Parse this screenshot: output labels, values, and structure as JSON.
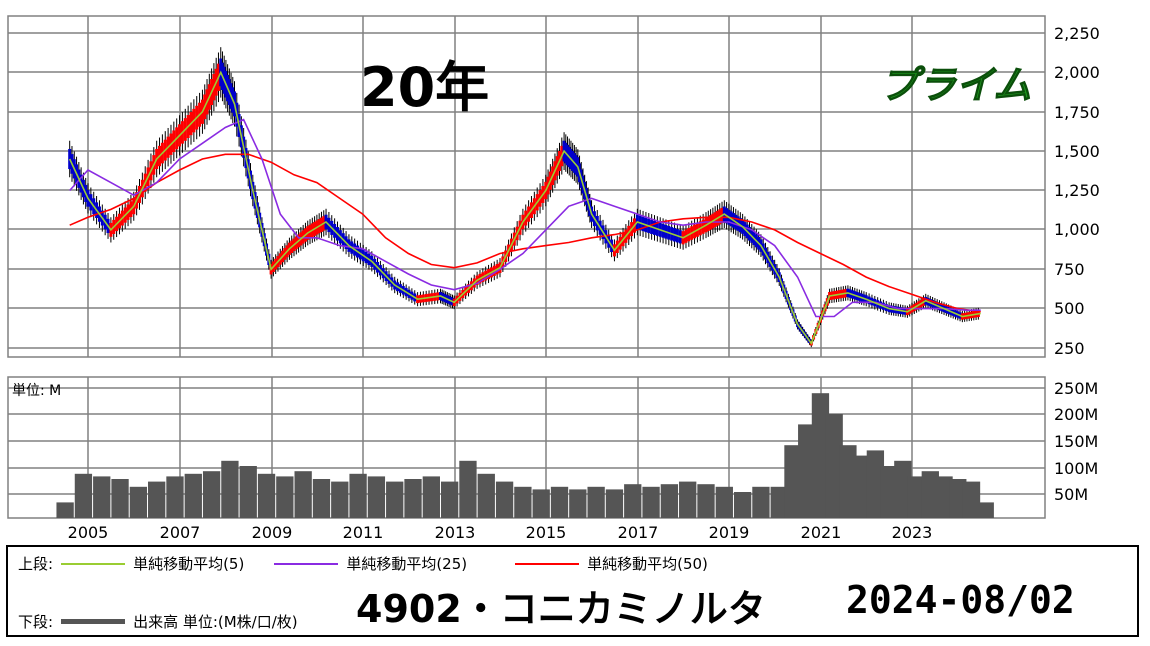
{
  "header": {
    "period_label": "20年",
    "market_label": "プライム"
  },
  "volume_panel": {
    "unit_label": "単位: M"
  },
  "legend": {
    "upper_label": "上段:",
    "lower_label": "下段:",
    "ma5_label": "単純移動平均(5)",
    "ma25_label": "単純移動平均(25)",
    "ma50_label": "単純移動平均(50)",
    "volume_label": "出来高 単位:(M株/口/枚)"
  },
  "footer": {
    "stock_title": "4902・コニカミノルタ",
    "date": "2024-08/02"
  },
  "colors": {
    "up_candle": "#ff0000",
    "down_candle": "#0000cc",
    "ma5": "#9acd32",
    "ma25": "#8a2be2",
    "ma50": "#ff0000",
    "volume": "#555555",
    "grid": "#808080"
  },
  "chart_data": [
    {
      "type": "line",
      "subtype": "candlestick-with-moving-averages",
      "x_ticks": [
        "2005",
        "2007",
        "2009",
        "2011",
        "2013",
        "2015",
        "2017",
        "2019",
        "2021",
        "2023"
      ],
      "y_ticks": [
        "2,250",
        "2,000",
        "1,750",
        "1,500",
        "1,250",
        "1,000",
        "750",
        "500",
        "250"
      ],
      "ylim": [
        250,
        2250
      ],
      "xlim": [
        2004.3,
        2024.8
      ],
      "series": [
        {
          "name": "単純移動平均(5)",
          "x": [
            2004.6,
            2005.0,
            2005.5,
            2006.0,
            2006.5,
            2007.0,
            2007.5,
            2007.9,
            2008.2,
            2008.6,
            2009.0,
            2009.4,
            2009.8,
            2010.2,
            2010.7,
            2011.2,
            2011.7,
            2012.2,
            2012.7,
            2013.0,
            2013.5,
            2014.0,
            2014.5,
            2015.0,
            2015.4,
            2015.7,
            2016.0,
            2016.5,
            2017.0,
            2017.5,
            2018.0,
            2018.5,
            2018.9,
            2019.3,
            2019.7,
            2020.1,
            2020.5,
            2020.8,
            2021.2,
            2021.6,
            2022.0,
            2022.5,
            2022.9,
            2023.3,
            2023.7,
            2024.1,
            2024.5
          ],
          "values": [
            1450,
            1200,
            1000,
            1150,
            1450,
            1600,
            1750,
            2000,
            1800,
            1250,
            750,
            880,
            980,
            1050,
            900,
            800,
            650,
            560,
            580,
            540,
            680,
            760,
            1050,
            1250,
            1500,
            1400,
            1100,
            870,
            1050,
            1000,
            950,
            1030,
            1100,
            1020,
            900,
            700,
            400,
            280,
            580,
            600,
            560,
            500,
            480,
            550,
            500,
            450,
            470
          ]
        },
        {
          "name": "単純移動平均(25)",
          "x": [
            2004.6,
            2005.0,
            2005.5,
            2006.0,
            2006.5,
            2007.0,
            2007.5,
            2008.0,
            2008.4,
            2008.8,
            2009.2,
            2009.6,
            2010.0,
            2010.5,
            2011.0,
            2011.5,
            2012.0,
            2012.5,
            2013.0,
            2013.5,
            2014.0,
            2014.5,
            2015.0,
            2015.5,
            2016.0,
            2016.5,
            2017.0,
            2017.5,
            2018.0,
            2018.5,
            2019.0,
            2019.5,
            2020.0,
            2020.5,
            2020.9,
            2021.3,
            2021.7,
            2022.2,
            2022.7,
            2023.2,
            2023.7,
            2024.2,
            2024.5
          ],
          "values": [
            1250,
            1380,
            1300,
            1220,
            1300,
            1450,
            1550,
            1650,
            1700,
            1450,
            1100,
            950,
            950,
            900,
            880,
            800,
            720,
            650,
            620,
            660,
            750,
            850,
            1000,
            1150,
            1200,
            1150,
            1100,
            1050,
            1030,
            1050,
            1050,
            1000,
            900,
            700,
            450,
            450,
            540,
            540,
            500,
            500,
            500,
            490,
            490
          ]
        },
        {
          "name": "単純移動平均(50)",
          "x": [
            2004.6,
            2005.0,
            2005.5,
            2006.0,
            2006.5,
            2007.0,
            2007.5,
            2008.0,
            2008.5,
            2009.0,
            2009.5,
            2010.0,
            2010.5,
            2011.0,
            2011.5,
            2012.0,
            2012.5,
            2013.0,
            2013.5,
            2014.0,
            2014.5,
            2015.0,
            2015.5,
            2016.0,
            2016.5,
            2017.0,
            2017.5,
            2018.0,
            2018.5,
            2019.0,
            2019.5,
            2020.0,
            2020.5,
            2021.0,
            2021.5,
            2022.0,
            2022.5,
            2023.0,
            2023.5,
            2024.0,
            2024.5
          ],
          "values": [
            1030,
            1080,
            1130,
            1200,
            1300,
            1380,
            1450,
            1480,
            1480,
            1430,
            1350,
            1300,
            1200,
            1100,
            950,
            850,
            780,
            760,
            790,
            850,
            880,
            900,
            920,
            950,
            970,
            1000,
            1050,
            1070,
            1080,
            1080,
            1050,
            1000,
            920,
            850,
            780,
            700,
            640,
            590,
            540,
            500,
            480
          ]
        }
      ]
    },
    {
      "type": "bar",
      "unit": "M",
      "y_ticks": [
        "250M",
        "200M",
        "150M",
        "100M",
        "50M"
      ],
      "ylim": [
        0,
        250
      ],
      "x": [
        2004.5,
        2004.9,
        2005.3,
        2005.7,
        2006.1,
        2006.5,
        2006.9,
        2007.3,
        2007.7,
        2008.1,
        2008.5,
        2008.9,
        2009.3,
        2009.7,
        2010.1,
        2010.5,
        2010.9,
        2011.3,
        2011.7,
        2012.1,
        2012.5,
        2012.9,
        2013.3,
        2013.7,
        2014.1,
        2014.5,
        2014.9,
        2015.3,
        2015.7,
        2016.1,
        2016.5,
        2016.9,
        2017.3,
        2017.7,
        2018.1,
        2018.5,
        2018.9,
        2019.3,
        2019.7,
        2020.1,
        2020.4,
        2020.7,
        2021.0,
        2021.3,
        2021.6,
        2021.9,
        2022.2,
        2022.5,
        2022.8,
        2023.1,
        2023.4,
        2023.7,
        2024.0,
        2024.3,
        2024.6
      ],
      "values": [
        30,
        85,
        80,
        75,
        60,
        70,
        80,
        85,
        90,
        110,
        100,
        85,
        80,
        90,
        75,
        70,
        85,
        80,
        70,
        75,
        80,
        70,
        110,
        85,
        70,
        60,
        55,
        60,
        55,
        60,
        55,
        65,
        60,
        65,
        70,
        65,
        60,
        50,
        60,
        60,
        140,
        180,
        240,
        200,
        140,
        120,
        130,
        100,
        110,
        80,
        90,
        80,
        75,
        70,
        30
      ]
    }
  ]
}
